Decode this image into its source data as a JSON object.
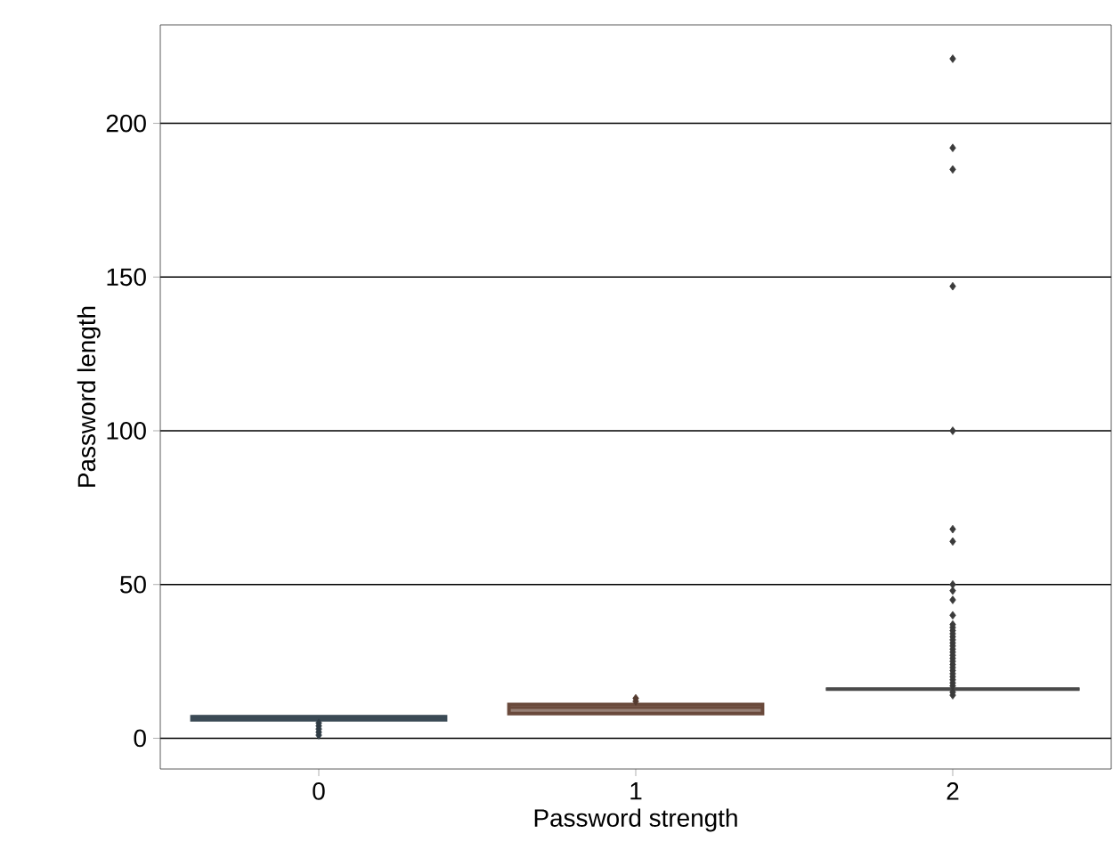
{
  "chart_data": {
    "type": "box",
    "xlabel": "Password strength",
    "ylabel": "Password length",
    "categories": [
      "0",
      "1",
      "2"
    ],
    "colors": [
      "#3b4a55",
      "#6a4a3c",
      "#4a4a4a"
    ],
    "boxes": [
      {
        "low": 6,
        "q1": 6,
        "median": 7,
        "q3": 7,
        "high": 7,
        "outliers": [
          1,
          2,
          3,
          4,
          5
        ]
      },
      {
        "low": 8,
        "q1": 8,
        "median": 10,
        "q3": 11,
        "high": 11,
        "outliers": [
          12,
          13
        ]
      },
      {
        "low": 16,
        "q1": 16,
        "median": 16,
        "q3": 16,
        "high": 16,
        "outliers": [
          14,
          15,
          17,
          18,
          19,
          20,
          21,
          22,
          23,
          24,
          25,
          26,
          27,
          28,
          29,
          30,
          31,
          32,
          33,
          34,
          35,
          36,
          37,
          40,
          45,
          48,
          50,
          64,
          68,
          100,
          147,
          185,
          192,
          221
        ]
      }
    ],
    "ylim": [
      -10,
      232
    ],
    "yticks": [
      0,
      50,
      100,
      150,
      200
    ],
    "grid": "y",
    "marker": "diamond"
  }
}
